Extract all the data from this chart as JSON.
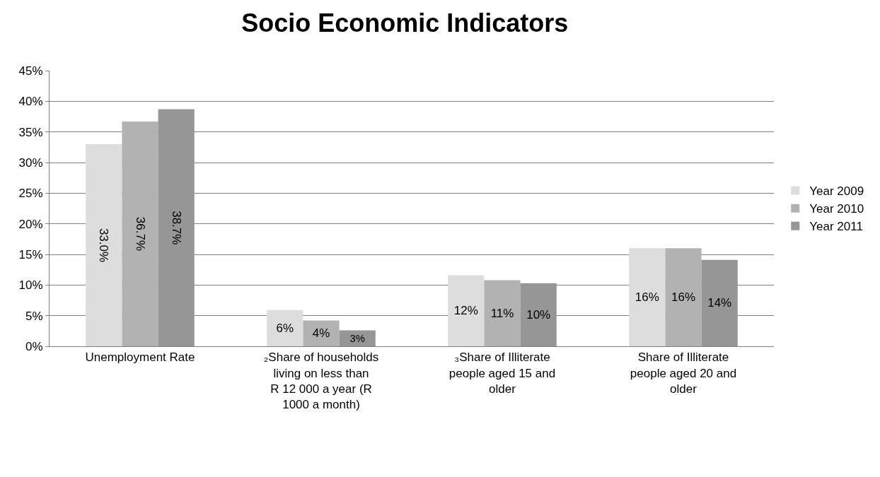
{
  "chart_data": {
    "type": "bar",
    "title": "Socio Economic Indicators",
    "categories": [
      "Unemployment Rate",
      "₂Share of households living on less than R 12 000 a year (R 1000 a month)",
      "₃Share of Illiterate people aged 15 and older",
      "Share of Illiterate people aged 20 and older"
    ],
    "series": [
      {
        "name": "Year 2009",
        "color": "#dddddd",
        "values": [
          33.0,
          5.9,
          11.6,
          16.0
        ],
        "value_labels": [
          "33.0%",
          "6%",
          "12%",
          "16%"
        ]
      },
      {
        "name": "Year 2010",
        "color": "#b2b2b2",
        "values": [
          36.7,
          4.2,
          10.8,
          16.0
        ],
        "value_labels": [
          "36.7%",
          "4%",
          "11%",
          "16%"
        ]
      },
      {
        "name": "Year 2011",
        "color": "#969696",
        "values": [
          38.7,
          2.6,
          10.3,
          14.1
        ],
        "value_labels": [
          "38.7%",
          "3%",
          "10%",
          "14%"
        ]
      }
    ],
    "ylim": [
      0,
      45
    ],
    "yticks": [
      {
        "value": 0,
        "label": "0%"
      },
      {
        "value": 5,
        "label": "5%"
      },
      {
        "value": 10,
        "label": "10%"
      },
      {
        "value": 15,
        "label": "15%"
      },
      {
        "value": 20,
        "label": "20%"
      },
      {
        "value": 25,
        "label": "25%"
      },
      {
        "value": 30,
        "label": "30%"
      },
      {
        "value": 35,
        "label": "35%"
      },
      {
        "value": 40,
        "label": "40%"
      },
      {
        "value": 45,
        "label": "45%"
      }
    ],
    "grid": "y",
    "legend": "right"
  }
}
